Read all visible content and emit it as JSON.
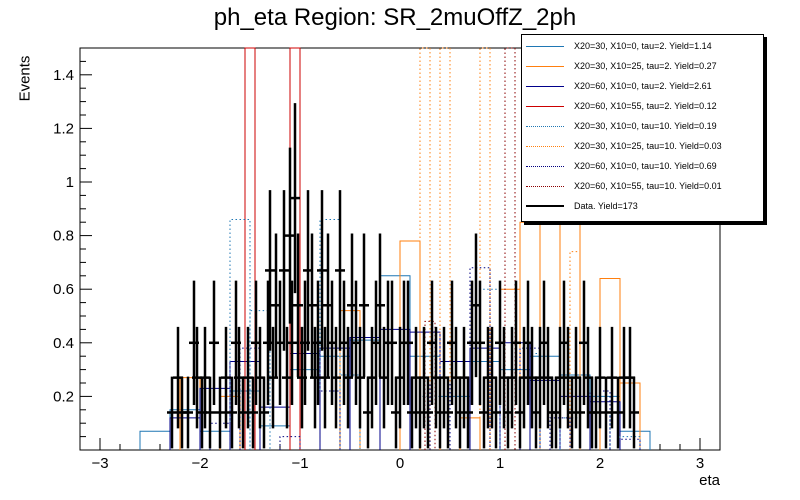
{
  "chart_data": {
    "type": "histogram",
    "title": "ph_eta Region: SR_2muOffZ_2ph",
    "xlabel": "eta",
    "ylabel": "Events",
    "xlim": [
      -3.2,
      3.2
    ],
    "ylim": [
      0,
      1.5
    ],
    "x_ticks": [
      -3,
      -2,
      -1,
      0,
      1,
      2,
      3
    ],
    "y_ticks": [
      0.2,
      0.4,
      0.6,
      0.8,
      1,
      1.2,
      1.4
    ],
    "y_tick_labels": [
      "0.2",
      "0.4",
      "0.6",
      "0.8",
      "1",
      "1.2",
      "1.4"
    ],
    "legend_position": "top-right",
    "series": [
      {
        "name": "X20=30, X10=0, tau=2. Yield=1.14",
        "color": "#1f77b4",
        "style": "solid",
        "bin_width": 0.3,
        "bins": [
          [
            -2.6,
            0.07
          ],
          [
            -2.3,
            0.15
          ],
          [
            -2.0,
            0.07
          ],
          [
            -1.7,
            0.22
          ],
          [
            -1.4,
            0.09
          ],
          [
            -1.1,
            0.3
          ],
          [
            -0.8,
            0.35
          ],
          [
            -0.5,
            0.41
          ],
          [
            -0.2,
            0.65
          ],
          [
            0.1,
            0.35
          ],
          [
            0.4,
            0.2
          ],
          [
            0.7,
            0.33
          ],
          [
            1.0,
            0.3
          ],
          [
            1.3,
            0.35
          ],
          [
            1.6,
            0.28
          ],
          [
            1.9,
            0.2
          ],
          [
            2.2,
            0.07
          ]
        ]
      },
      {
        "name": "X20=30, X10=25, tau=2. Yield=0.27",
        "color": "#ff7f0e",
        "style": "solid",
        "bin_width": 0.2,
        "bins": [
          [
            -2.2,
            0.27
          ],
          [
            -1.8,
            0.2
          ],
          [
            -0.6,
            0.52
          ],
          [
            0.0,
            0.78
          ],
          [
            0.6,
            0.12
          ],
          [
            1.0,
            0.6
          ],
          [
            1.2,
            0.85
          ],
          [
            1.4,
            1.04
          ],
          [
            1.6,
            0.95
          ],
          [
            2.0,
            0.64
          ],
          [
            2.2,
            0.25
          ]
        ]
      },
      {
        "name": "X20=60, X10=0, tau=2. Yield=2.61",
        "color": "#00008b",
        "style": "solid",
        "bin_width": 0.3,
        "bins": [
          [
            -2.3,
            0.12
          ],
          [
            -2.0,
            0.23
          ],
          [
            -1.7,
            0.33
          ],
          [
            -1.4,
            0.16
          ],
          [
            -1.1,
            0.36
          ],
          [
            -0.8,
            0.38
          ],
          [
            -0.5,
            0.42
          ],
          [
            -0.2,
            0.45
          ],
          [
            0.1,
            0.44
          ],
          [
            0.4,
            0.33
          ],
          [
            0.7,
            0.38
          ],
          [
            1.0,
            0.4
          ],
          [
            1.3,
            0.26
          ],
          [
            1.6,
            0.2
          ],
          [
            1.9,
            0.18
          ]
        ]
      },
      {
        "name": "X20=60, X10=55, tau=2. Yield=0.12",
        "color": "#cc0000",
        "style": "solid",
        "bin_width": 0.1,
        "bins": [
          [
            -1.55,
            1.5
          ],
          [
            -1.1,
            1.5
          ]
        ]
      },
      {
        "name": "X20=30, X10=0, tau=10. Yield=0.19",
        "color": "#1f77b4",
        "style": "dotted",
        "bin_width": 0.2,
        "bins": [
          [
            -1.7,
            0.86
          ],
          [
            -1.5,
            0.52
          ],
          [
            -0.8,
            0.86
          ],
          [
            -0.6,
            0.28
          ],
          [
            0.2,
            0.2
          ],
          [
            0.8,
            0.6
          ],
          [
            1.2,
            0.36
          ],
          [
            1.6,
            0.12
          ],
          [
            1.9,
            0.14
          ],
          [
            2.2,
            0.05
          ]
        ]
      },
      {
        "name": "X20=30, X10=25, tau=10. Yield=0.03",
        "color": "#ff7f0e",
        "style": "dotted",
        "bin_width": 0.1,
        "bins": [
          [
            0.2,
            1.5
          ],
          [
            0.4,
            1.5
          ],
          [
            0.8,
            1.5
          ],
          [
            1.7,
            0.74
          ]
        ]
      },
      {
        "name": "X20=60, X10=0, tau=10. Yield=0.69",
        "color": "#000080",
        "style": "dotted",
        "bin_width": 0.2,
        "bins": [
          [
            -1.9,
            0.1
          ],
          [
            -1.6,
            0.38
          ],
          [
            -1.2,
            0.05
          ],
          [
            -0.8,
            0.22
          ],
          [
            0.3,
            0.25
          ],
          [
            0.7,
            0.68
          ],
          [
            1.2,
            0.38
          ],
          [
            1.5,
            0.12
          ],
          [
            1.9,
            0.22
          ],
          [
            2.2,
            0.04
          ]
        ]
      },
      {
        "name": "X20=60, X10=55, tau=10. Yield=0.01",
        "color": "#8b0000",
        "style": "dotted",
        "bin_width": 0.1,
        "bins": [
          [
            0.25,
            0.48
          ],
          [
            1.05,
            1.5
          ]
        ]
      },
      {
        "name": "Data. Yield=173",
        "color": "#000000",
        "style": "errorbar",
        "points": [
          [
            -2.28,
            0.14
          ],
          [
            -2.22,
            0.27
          ],
          [
            -2.18,
            0.14
          ],
          [
            -2.12,
            0.14
          ],
          [
            -2.06,
            0.4
          ],
          [
            -2.03,
            0.27
          ],
          [
            -1.98,
            0.14
          ],
          [
            -1.95,
            0.27
          ],
          [
            -1.9,
            0.14
          ],
          [
            -1.86,
            0.4
          ],
          [
            -1.8,
            0.14
          ],
          [
            -1.74,
            0.27
          ],
          [
            -1.68,
            0.14
          ],
          [
            -1.64,
            0.4
          ],
          [
            -1.61,
            0.27
          ],
          [
            -1.57,
            0.14
          ],
          [
            -1.52,
            0.27
          ],
          [
            -1.47,
            0.14
          ],
          [
            -1.44,
            0.4
          ],
          [
            -1.4,
            0.27
          ],
          [
            -1.36,
            0.14
          ],
          [
            -1.32,
            0.4
          ],
          [
            -1.3,
            0.67
          ],
          [
            -1.27,
            0.27
          ],
          [
            -1.24,
            0.54
          ],
          [
            -1.2,
            0.4
          ],
          [
            -1.16,
            0.67
          ],
          [
            -1.13,
            0.27
          ],
          [
            -1.1,
            0.8
          ],
          [
            -1.08,
            0.4
          ],
          [
            -1.05,
            0.94
          ],
          [
            -1.02,
            0.54
          ],
          [
            -0.98,
            0.27
          ],
          [
            -0.95,
            0.4
          ],
          [
            -0.92,
            0.67
          ],
          [
            -0.88,
            0.54
          ],
          [
            -0.85,
            0.27
          ],
          [
            -0.82,
            0.4
          ],
          [
            -0.78,
            0.67
          ],
          [
            -0.75,
            0.27
          ],
          [
            -0.72,
            0.54
          ],
          [
            -0.68,
            0.4
          ],
          [
            -0.64,
            0.27
          ],
          [
            -0.6,
            0.67
          ],
          [
            -0.56,
            0.4
          ],
          [
            -0.52,
            0.27
          ],
          [
            -0.48,
            0.54
          ],
          [
            -0.44,
            0.4
          ],
          [
            -0.4,
            0.27
          ],
          [
            -0.36,
            0.54
          ],
          [
            -0.32,
            0.14
          ],
          [
            -0.28,
            0.27
          ],
          [
            -0.24,
            0.4
          ],
          [
            -0.2,
            0.54
          ],
          [
            -0.16,
            0.27
          ],
          [
            -0.12,
            0.4
          ],
          [
            -0.08,
            0.4
          ],
          [
            -0.04,
            0.14
          ],
          [
            0.0,
            0.27
          ],
          [
            0.04,
            0.4
          ],
          [
            0.08,
            0.4
          ],
          [
            0.12,
            0.14
          ],
          [
            0.16,
            0.27
          ],
          [
            0.2,
            0.14
          ],
          [
            0.24,
            0.27
          ],
          [
            0.28,
            0.14
          ],
          [
            0.32,
            0.4
          ],
          [
            0.36,
            0.27
          ],
          [
            0.4,
            0.14
          ],
          [
            0.44,
            0.27
          ],
          [
            0.48,
            0.14
          ],
          [
            0.52,
            0.4
          ],
          [
            0.56,
            0.27
          ],
          [
            0.6,
            0.14
          ],
          [
            0.64,
            0.27
          ],
          [
            0.68,
            0.14
          ],
          [
            0.72,
            0.4
          ],
          [
            0.76,
            0.54
          ],
          [
            0.8,
            0.4
          ],
          [
            0.84,
            0.14
          ],
          [
            0.88,
            0.27
          ],
          [
            0.92,
            0.27
          ],
          [
            0.96,
            0.14
          ],
          [
            1.0,
            0.4
          ],
          [
            1.04,
            0.27
          ],
          [
            1.08,
            0.14
          ],
          [
            1.12,
            0.27
          ],
          [
            1.16,
            0.4
          ],
          [
            1.2,
            0.14
          ],
          [
            1.24,
            0.27
          ],
          [
            1.28,
            0.4
          ],
          [
            1.32,
            0.27
          ],
          [
            1.36,
            0.14
          ],
          [
            1.4,
            0.27
          ],
          [
            1.44,
            0.4
          ],
          [
            1.48,
            0.27
          ],
          [
            1.52,
            0.14
          ],
          [
            1.56,
            0.14
          ],
          [
            1.6,
            0.27
          ],
          [
            1.64,
            0.4
          ],
          [
            1.68,
            0.27
          ],
          [
            1.72,
            0.14
          ],
          [
            1.76,
            0.27
          ],
          [
            1.8,
            0.14
          ],
          [
            1.84,
            0.4
          ],
          [
            1.88,
            0.27
          ],
          [
            1.92,
            0.14
          ],
          [
            1.96,
            0.14
          ],
          [
            2.0,
            0.27
          ],
          [
            2.06,
            0.14
          ],
          [
            2.12,
            0.27
          ],
          [
            2.18,
            0.14
          ],
          [
            2.24,
            0.27
          ],
          [
            2.3,
            0.27
          ],
          [
            2.34,
            0.14
          ]
        ]
      }
    ]
  }
}
